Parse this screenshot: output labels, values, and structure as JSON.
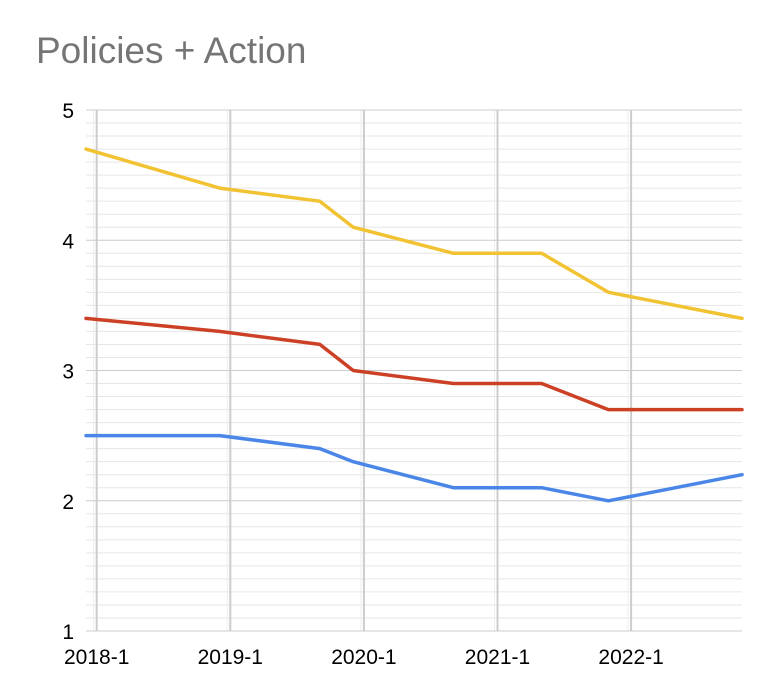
{
  "chart_data": {
    "type": "line",
    "title": "Policies + Action",
    "xlabel": "",
    "ylabel": "",
    "ylim": [
      1,
      5
    ],
    "yticks": [
      "1",
      "2",
      "3",
      "4",
      "5"
    ],
    "x_tick_labels": [
      "2018-1",
      "2019-1",
      "2020-1",
      "2021-1",
      "2022-1"
    ],
    "x": [
      2017.92,
      2018.92,
      2019.67,
      2019.92,
      2020.67,
      2021.33,
      2021.83,
      2022.83
    ],
    "xlim": [
      2017.92,
      2022.83
    ],
    "grid": true,
    "legend": "none",
    "series": [
      {
        "color": "#f1c232",
        "values": [
          4.7,
          4.4,
          4.3,
          4.1,
          3.9,
          3.9,
          3.6,
          3.4
        ]
      },
      {
        "color": "#cc4125",
        "values": [
          3.4,
          3.3,
          3.2,
          3.0,
          2.9,
          2.9,
          2.7,
          2.7
        ]
      },
      {
        "color": "#4a86e8",
        "values": [
          2.5,
          2.5,
          2.4,
          2.3,
          2.1,
          2.1,
          2.0,
          2.2
        ]
      }
    ]
  }
}
